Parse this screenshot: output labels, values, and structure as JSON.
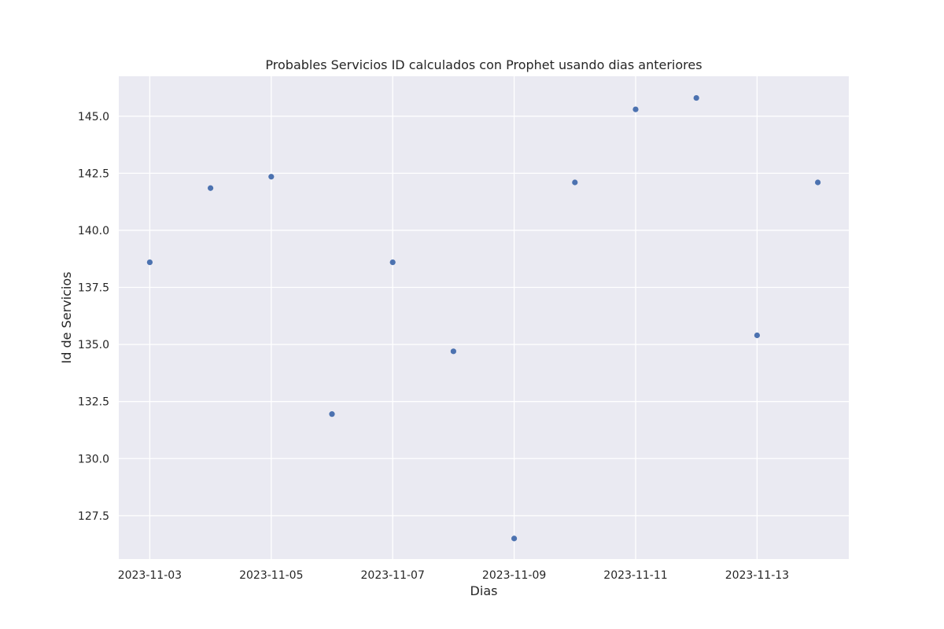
{
  "chart_data": {
    "type": "scatter",
    "title": "Probables Servicios ID calculados con Prophet usando dias anteriores",
    "xlabel": "Dias",
    "ylabel": "Id de Servicios",
    "x": [
      "2023-11-03",
      "2023-11-04",
      "2023-11-05",
      "2023-11-06",
      "2023-11-07",
      "2023-11-08",
      "2023-11-09",
      "2023-11-10",
      "2023-11-11",
      "2023-11-12",
      "2023-11-13",
      "2023-11-14"
    ],
    "y": [
      138.6,
      141.85,
      142.35,
      131.95,
      138.6,
      134.7,
      126.5,
      142.1,
      145.3,
      145.8,
      135.4,
      142.1
    ],
    "xlim": [
      "2023-11-02T11:45",
      "2023-11-14T12:15"
    ],
    "ylim": [
      125.6,
      146.75
    ],
    "xticks": [
      "2023-11-03",
      "2023-11-05",
      "2023-11-07",
      "2023-11-09",
      "2023-11-11",
      "2023-11-13"
    ],
    "yticks": [
      "127.5",
      "130.0",
      "132.5",
      "135.0",
      "137.5",
      "140.0",
      "142.5",
      "145.0"
    ],
    "grid": true,
    "colors": {
      "background": "#eaeaf2",
      "grid": "#ffffff",
      "marker": "#4c72b0"
    }
  }
}
